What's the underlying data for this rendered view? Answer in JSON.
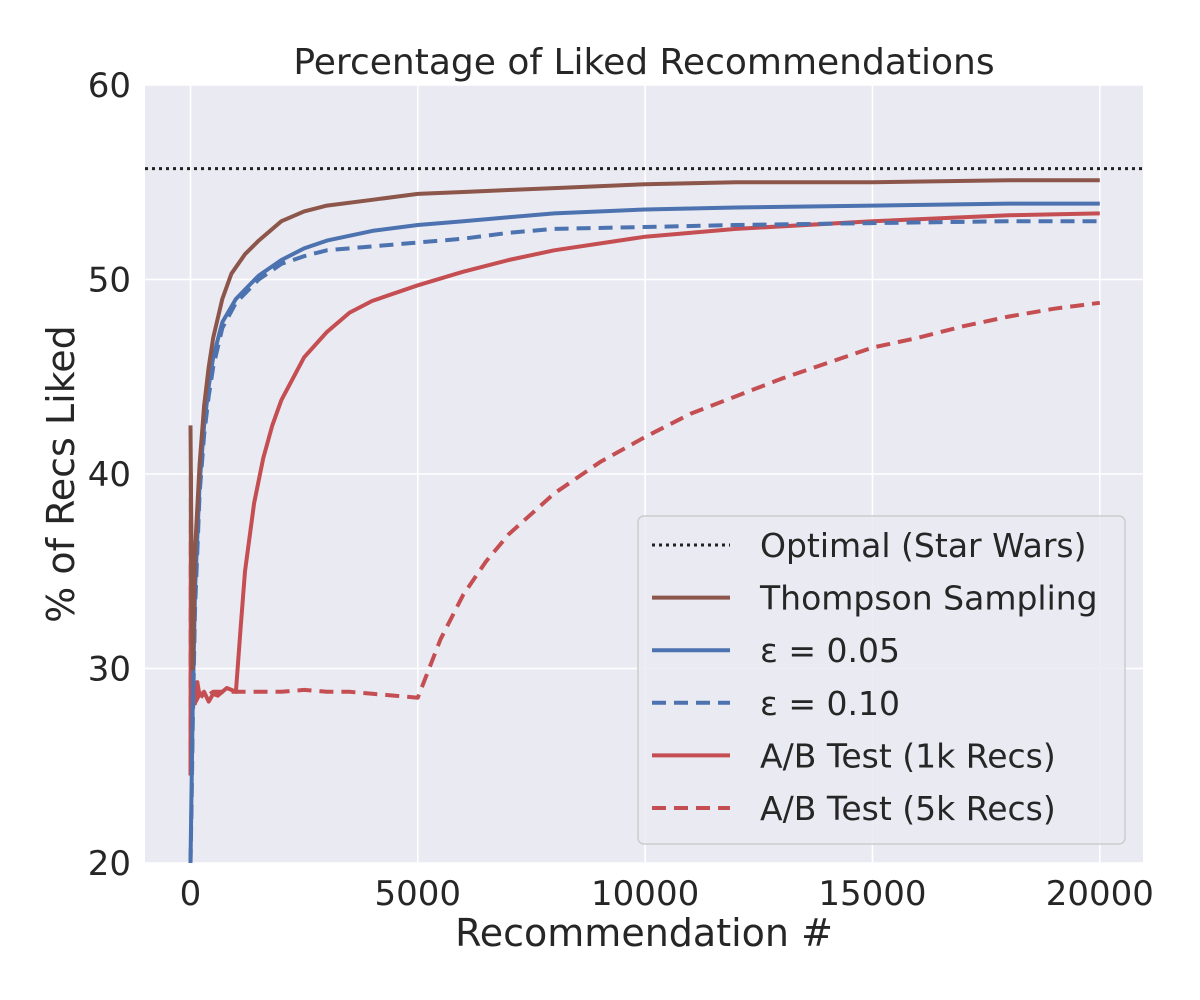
{
  "chart_data": {
    "type": "line",
    "title": "Percentage of Liked Recommendations",
    "xlabel": "Recommendation #",
    "ylabel": "% of Recs Liked",
    "xlim": [
      -1000,
      20950
    ],
    "ylim": [
      20,
      60
    ],
    "xticks": [
      0,
      5000,
      10000,
      15000,
      20000
    ],
    "xtick_labels": [
      "0",
      "5000",
      "10000",
      "15000",
      "20000"
    ],
    "yticks": [
      20,
      30,
      40,
      50,
      60
    ],
    "ytick_labels": [
      "20",
      "30",
      "40",
      "50",
      "60"
    ],
    "grid": true,
    "legend_position": "lower right",
    "colors": {
      "background": "#eaeaf2",
      "grid": "#ffffff",
      "optimal": "#222222",
      "thompson": "#8c564b",
      "epsilon": "#4c72b0",
      "ab": "#c44e52"
    },
    "series": [
      {
        "name": "Optimal (Star Wars)",
        "style": "dotted",
        "color": "#222222",
        "x": [
          -1000,
          20950
        ],
        "y": [
          55.7,
          55.7
        ]
      },
      {
        "name": "Thompson Sampling",
        "style": "solid",
        "color": "#8c564b",
        "x": [
          0,
          25,
          50,
          100,
          200,
          300,
          400,
          500,
          700,
          900,
          1200,
          1500,
          2000,
          2500,
          3000,
          4000,
          5000,
          6000,
          7000,
          8000,
          10000,
          12000,
          15000,
          18000,
          20000
        ],
        "y": [
          42.5,
          35.0,
          30.0,
          36.0,
          40.5,
          43.5,
          45.5,
          47.0,
          49.0,
          50.3,
          51.3,
          52.0,
          53.0,
          53.5,
          53.8,
          54.1,
          54.4,
          54.5,
          54.6,
          54.7,
          54.9,
          55.0,
          55.0,
          55.1,
          55.1
        ]
      },
      {
        "name": "ε = 0.05",
        "style": "solid",
        "color": "#4c72b0",
        "x": [
          0,
          25,
          50,
          100,
          200,
          300,
          400,
          500,
          700,
          1000,
          1500,
          2000,
          2500,
          3000,
          4000,
          5000,
          6000,
          7000,
          8000,
          10000,
          12000,
          15000,
          18000,
          20000
        ],
        "y": [
          20.0,
          24.0,
          28.0,
          34.0,
          39.5,
          42.5,
          44.5,
          46.0,
          47.8,
          49.0,
          50.2,
          51.0,
          51.6,
          52.0,
          52.5,
          52.8,
          53.0,
          53.2,
          53.4,
          53.6,
          53.7,
          53.8,
          53.9,
          53.9
        ]
      },
      {
        "name": "ε = 0.10",
        "style": "dashed",
        "color": "#4c72b0",
        "x": [
          0,
          25,
          50,
          100,
          200,
          300,
          400,
          500,
          700,
          1000,
          1500,
          2000,
          2500,
          3000,
          4000,
          5000,
          6000,
          7000,
          8000,
          10000,
          12000,
          15000,
          18000,
          20000
        ],
        "y": [
          20.0,
          23.0,
          27.0,
          33.0,
          39.0,
          42.0,
          44.0,
          45.5,
          47.5,
          48.8,
          50.0,
          50.8,
          51.2,
          51.5,
          51.7,
          51.9,
          52.1,
          52.4,
          52.6,
          52.7,
          52.8,
          52.9,
          53.0,
          53.0
        ]
      },
      {
        "name": "A/B Test (1k Recs)",
        "style": "solid",
        "color": "#c44e52",
        "x": [
          0,
          10,
          25,
          50,
          100,
          150,
          200,
          300,
          400,
          500,
          600,
          700,
          800,
          900,
          1000,
          1100,
          1200,
          1400,
          1600,
          1800,
          2000,
          2500,
          3000,
          3500,
          4000,
          5000,
          6000,
          7000,
          8000,
          10000,
          12000,
          15000,
          18000,
          20000
        ],
        "y": [
          24.5,
          40.0,
          29.0,
          30.0,
          28.2,
          29.3,
          28.6,
          28.8,
          28.3,
          28.7,
          28.6,
          28.8,
          29.0,
          28.9,
          28.8,
          32.0,
          35.0,
          38.5,
          40.8,
          42.5,
          43.8,
          46.0,
          47.3,
          48.3,
          48.9,
          49.7,
          50.4,
          51.0,
          51.5,
          52.2,
          52.6,
          53.0,
          53.3,
          53.4
        ]
      },
      {
        "name": "A/B Test (5k Recs)",
        "style": "dashed",
        "color": "#c44e52",
        "x": [
          0,
          10,
          25,
          50,
          100,
          200,
          300,
          500,
          700,
          900,
          1000,
          1500,
          2000,
          2500,
          3000,
          3500,
          4000,
          4500,
          5000,
          5500,
          6000,
          6500,
          7000,
          8000,
          9000,
          10000,
          11000,
          12000,
          13000,
          14000,
          15000,
          16000,
          17000,
          18000,
          19000,
          20000
        ],
        "y": [
          24.5,
          40.0,
          29.0,
          30.0,
          28.2,
          28.7,
          28.5,
          28.8,
          28.8,
          28.8,
          28.8,
          28.8,
          28.8,
          28.9,
          28.8,
          28.8,
          28.7,
          28.6,
          28.5,
          31.5,
          33.8,
          35.5,
          36.9,
          39.0,
          40.6,
          41.9,
          43.1,
          44.0,
          44.9,
          45.7,
          46.5,
          47.0,
          47.6,
          48.1,
          48.5,
          48.8
        ]
      }
    ],
    "legend": [
      {
        "label": "Optimal (Star Wars)",
        "style": "dotted",
        "color": "#222222"
      },
      {
        "label": "Thompson Sampling",
        "style": "solid",
        "color": "#8c564b"
      },
      {
        "label": "ε = 0.05",
        "style": "solid",
        "color": "#4c72b0"
      },
      {
        "label": "ε = 0.10",
        "style": "dashed",
        "color": "#4c72b0"
      },
      {
        "label": "A/B Test (1k Recs)",
        "style": "solid",
        "color": "#c44e52"
      },
      {
        "label": "A/B Test (5k Recs)",
        "style": "dashed",
        "color": "#c44e52"
      }
    ]
  }
}
